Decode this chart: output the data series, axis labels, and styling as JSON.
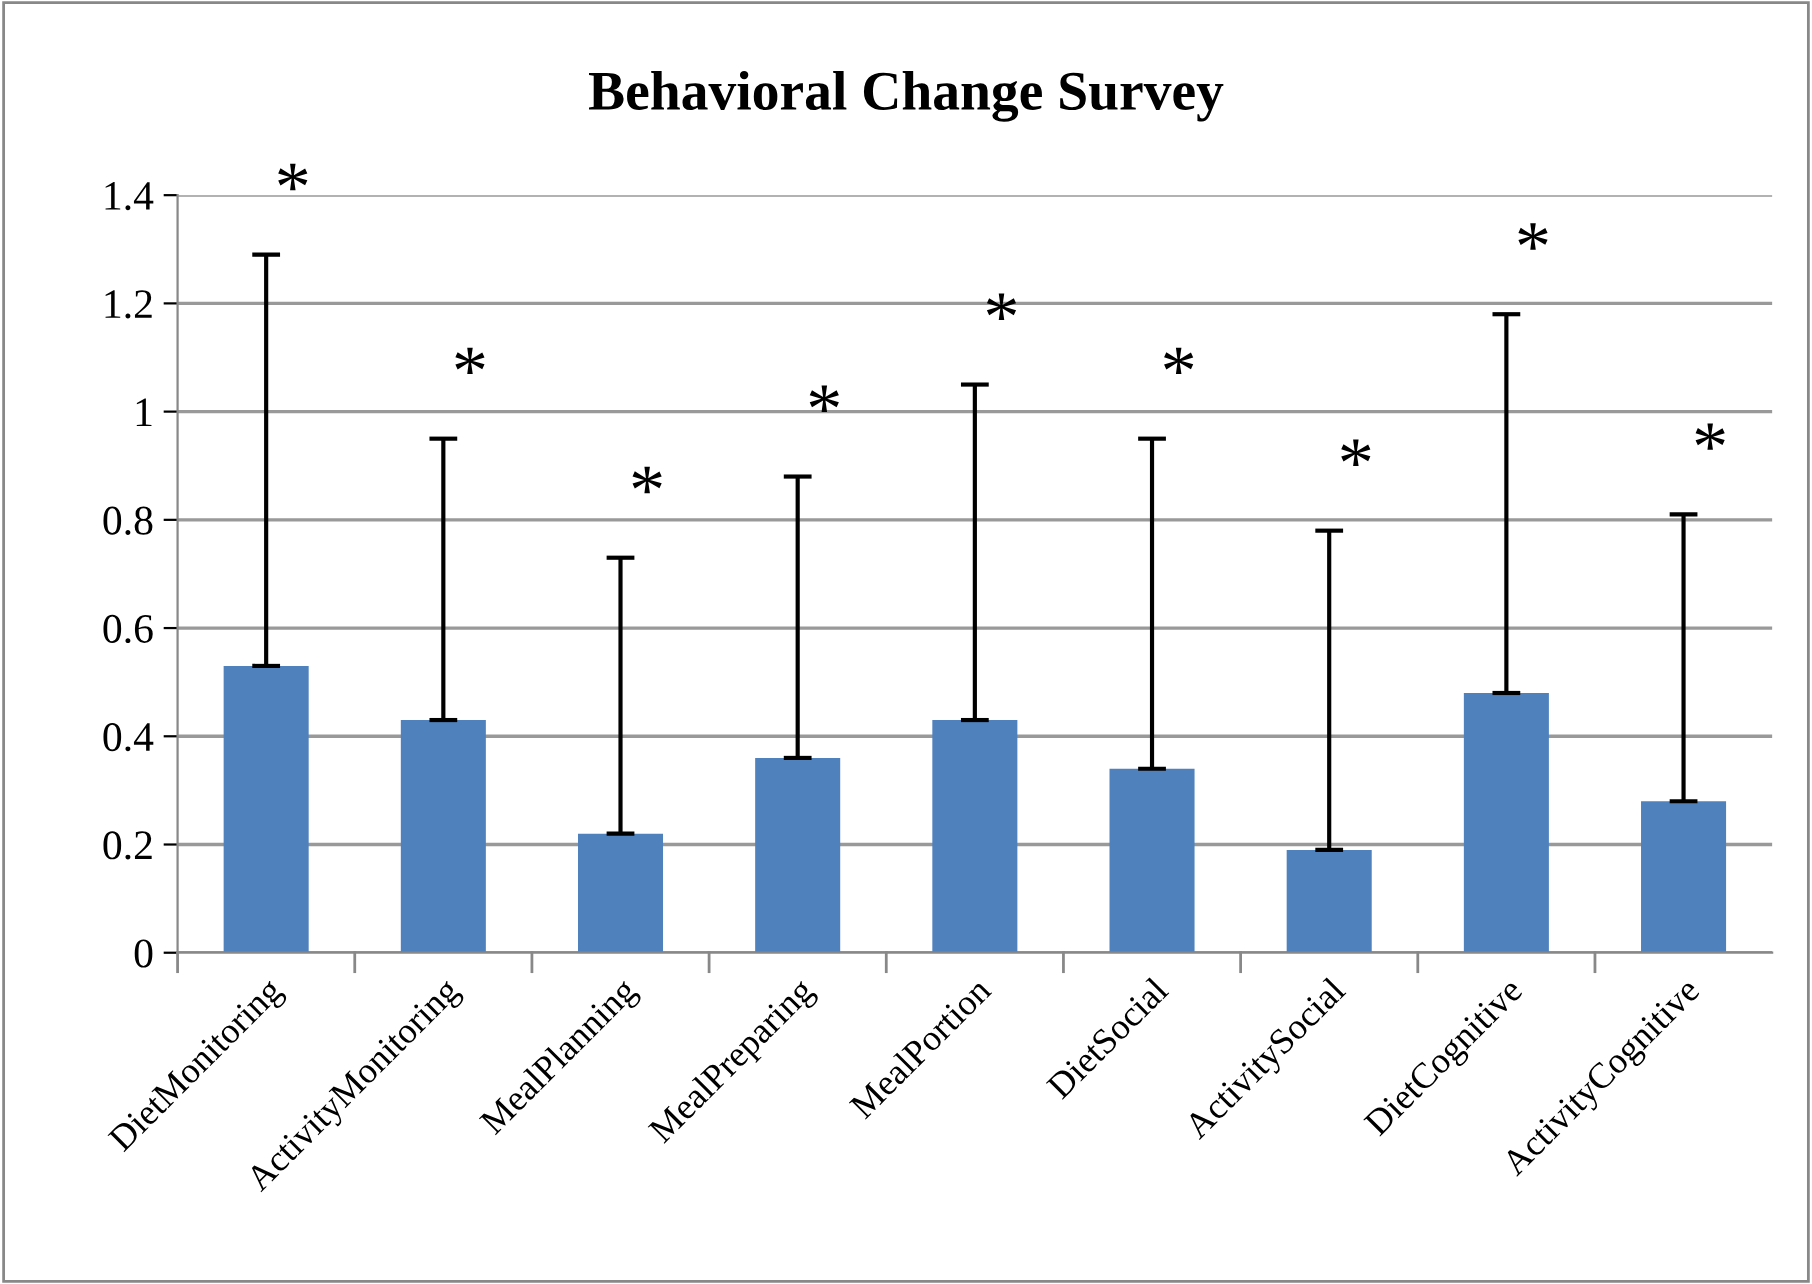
{
  "chart_data": {
    "type": "bar",
    "title": "Behavioral Change Survey",
    "categories": [
      "DietMonitoring",
      "ActivityMonitoring",
      "MealPlanning",
      "MealPreparing",
      "MealPortion",
      "DietSocial",
      "ActivitySocial",
      "DietCognitive",
      "ActivityCognitive"
    ],
    "values": [
      0.53,
      0.43,
      0.22,
      0.36,
      0.43,
      0.34,
      0.19,
      0.48,
      0.28
    ],
    "errors": [
      [
        0.53,
        1.29
      ],
      [
        0.43,
        0.95
      ],
      [
        0.22,
        0.73
      ],
      [
        0.36,
        0.88
      ],
      [
        0.43,
        1.05
      ],
      [
        0.34,
        0.95
      ],
      [
        0.19,
        0.78
      ],
      [
        0.48,
        1.18
      ],
      [
        0.28,
        0.81
      ]
    ],
    "color": "#4f81bd",
    "ylim": [
      0,
      1.4
    ],
    "yticks": [
      0,
      {
        "value": 0.2,
        "label": "0.2"
      },
      {
        "value": 0.4,
        "label": "0.4"
      },
      {
        "value": 0.6,
        "label": "0.6"
      },
      {
        "value": 0.8,
        "label": "0.8"
      },
      1,
      {
        "value": 1.2,
        "label": "1.2"
      },
      {
        "value": 1.4,
        "label": "1.4"
      }
    ],
    "grid": "y",
    "annotations": [
      "*",
      "*",
      "*",
      "*",
      "*",
      "*",
      "*",
      "*",
      "*"
    ]
  }
}
